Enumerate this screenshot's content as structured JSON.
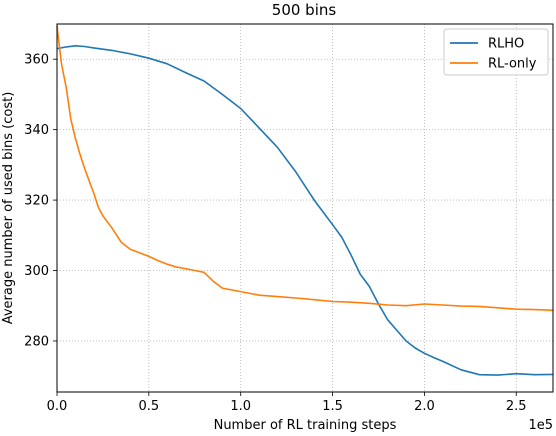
{
  "chart_data": {
    "type": "line",
    "title": "500 bins",
    "xlabel": "Number of RL training steps",
    "ylabel": "Average number of used bins (cost)",
    "x_offset_label": "1e5",
    "xlim": [
      0,
      270000
    ],
    "ylim": [
      265.5,
      370
    ],
    "x_ticks": [
      {
        "value": 0,
        "label": "0.0"
      },
      {
        "value": 50000,
        "label": "0.5"
      },
      {
        "value": 100000,
        "label": "1.0"
      },
      {
        "value": 150000,
        "label": "1.5"
      },
      {
        "value": 200000,
        "label": "2.0"
      },
      {
        "value": 250000,
        "label": "2.5"
      }
    ],
    "y_ticks": [
      {
        "value": 280,
        "label": "280"
      },
      {
        "value": 300,
        "label": "300"
      },
      {
        "value": 320,
        "label": "320"
      },
      {
        "value": 340,
        "label": "340"
      },
      {
        "value": 360,
        "label": "360"
      }
    ],
    "grid": true,
    "legend_position": "top-right",
    "series": [
      {
        "name": "RLHO",
        "color": "#1f77b4",
        "points": [
          [
            0,
            363.0
          ],
          [
            5000,
            363.5
          ],
          [
            10000,
            363.8
          ],
          [
            15000,
            363.6
          ],
          [
            20000,
            363.2
          ],
          [
            30000,
            362.5
          ],
          [
            40000,
            361.5
          ],
          [
            50000,
            360.3
          ],
          [
            60000,
            358.7
          ],
          [
            70000,
            356.2
          ],
          [
            80000,
            353.8
          ],
          [
            90000,
            350.0
          ],
          [
            100000,
            346.0
          ],
          [
            110000,
            340.5
          ],
          [
            120000,
            335.0
          ],
          [
            130000,
            328.0
          ],
          [
            140000,
            320.0
          ],
          [
            150000,
            313.0
          ],
          [
            155000,
            309.5
          ],
          [
            160000,
            304.5
          ],
          [
            165000,
            299.0
          ],
          [
            170000,
            295.5
          ],
          [
            175000,
            290.5
          ],
          [
            180000,
            286.0
          ],
          [
            185000,
            283.0
          ],
          [
            190000,
            280.0
          ],
          [
            195000,
            278.0
          ],
          [
            200000,
            276.5
          ],
          [
            205000,
            275.3
          ],
          [
            210000,
            274.2
          ],
          [
            220000,
            271.8
          ],
          [
            230000,
            270.4
          ],
          [
            240000,
            270.3
          ],
          [
            250000,
            270.7
          ],
          [
            260000,
            270.4
          ],
          [
            270000,
            270.5
          ]
        ]
      },
      {
        "name": "RL-only",
        "color": "#ff7f0e",
        "points": [
          [
            0,
            369.5
          ],
          [
            1000,
            365.0
          ],
          [
            2500,
            358.5
          ],
          [
            5000,
            352.0
          ],
          [
            7500,
            343.0
          ],
          [
            10000,
            337.5
          ],
          [
            12500,
            333.0
          ],
          [
            15000,
            329.0
          ],
          [
            17500,
            325.5
          ],
          [
            20000,
            322.0
          ],
          [
            22500,
            318.0
          ],
          [
            25000,
            315.5
          ],
          [
            30000,
            312.0
          ],
          [
            35000,
            308.0
          ],
          [
            40000,
            306.0
          ],
          [
            45000,
            305.0
          ],
          [
            50000,
            304.0
          ],
          [
            55000,
            302.8
          ],
          [
            60000,
            301.8
          ],
          [
            65000,
            301.0
          ],
          [
            70000,
            300.5
          ],
          [
            75000,
            300.0
          ],
          [
            80000,
            299.5
          ],
          [
            85000,
            297.0
          ],
          [
            90000,
            295.0
          ],
          [
            95000,
            294.5
          ],
          [
            100000,
            294.0
          ],
          [
            105000,
            293.5
          ],
          [
            110000,
            293.0
          ],
          [
            120000,
            292.6
          ],
          [
            130000,
            292.2
          ],
          [
            140000,
            291.7
          ],
          [
            150000,
            291.2
          ],
          [
            160000,
            291.0
          ],
          [
            170000,
            290.7
          ],
          [
            180000,
            290.2
          ],
          [
            190000,
            290.0
          ],
          [
            200000,
            290.5
          ],
          [
            210000,
            290.2
          ],
          [
            220000,
            289.9
          ],
          [
            230000,
            289.8
          ],
          [
            240000,
            289.4
          ],
          [
            250000,
            289.0
          ],
          [
            260000,
            288.9
          ],
          [
            270000,
            288.7
          ]
        ]
      }
    ]
  }
}
